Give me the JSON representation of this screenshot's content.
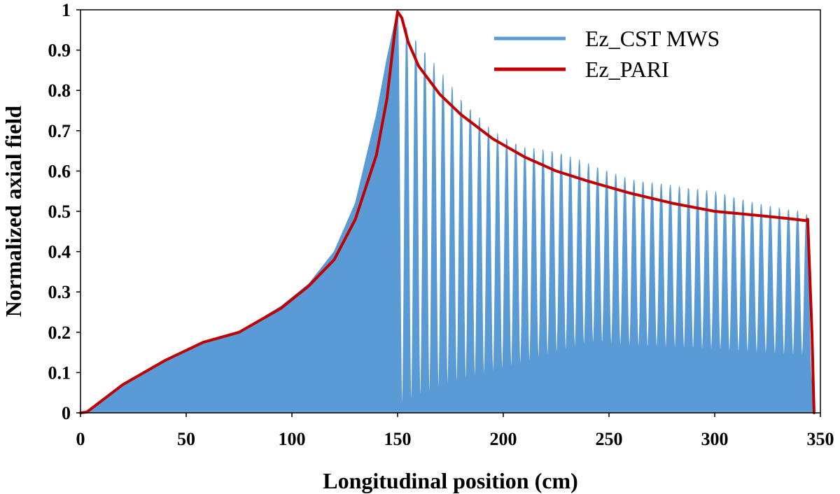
{
  "chart_data": {
    "type": "line",
    "xlabel": "Longitudinal position (cm)",
    "ylabel": "Normalized axial field",
    "xlim": [
      0,
      350
    ],
    "ylim": [
      0,
      1
    ],
    "xticks": [
      "0",
      "50",
      "100",
      "150",
      "200",
      "250",
      "300",
      "350"
    ],
    "yticks": [
      "0",
      "0.1",
      "0.2",
      "0.3",
      "0.4",
      "0.5",
      "0.6",
      "0.7",
      "0.8",
      "0.9",
      "1"
    ],
    "grid": false,
    "legend_position": "top-right",
    "series": [
      {
        "name": "Ez_CST MWS",
        "color": "#5b9bd5",
        "style": "oscillating",
        "envelope": {
          "x": [
            0,
            3,
            20,
            40,
            58,
            75,
            95,
            108,
            120,
            130,
            140,
            145,
            150,
            155,
            160,
            170,
            180,
            195,
            210,
            225,
            240,
            260,
            280,
            300,
            320,
            335,
            343,
            345,
            347
          ],
          "y": [
            0,
            0,
            0.07,
            0.13,
            0.175,
            0.2,
            0.265,
            0.32,
            0.4,
            0.52,
            0.74,
            0.88,
            1.0,
            0.95,
            0.92,
            0.85,
            0.78,
            0.7,
            0.66,
            0.65,
            0.62,
            0.58,
            0.565,
            0.55,
            0.52,
            0.505,
            0.5,
            0.47,
            0
          ]
        }
      },
      {
        "name": "Ez_PARI",
        "color": "#c00000",
        "x": [
          0,
          3,
          20,
          40,
          58,
          75,
          95,
          108,
          120,
          130,
          140,
          145,
          149,
          150,
          152,
          155,
          160,
          170,
          180,
          195,
          210,
          225,
          240,
          260,
          280,
          300,
          320,
          335,
          343,
          344,
          346,
          347
        ],
        "y": [
          0,
          0.002,
          0.07,
          0.13,
          0.175,
          0.2,
          0.26,
          0.315,
          0.38,
          0.48,
          0.64,
          0.78,
          0.96,
          0.995,
          0.98,
          0.92,
          0.86,
          0.79,
          0.74,
          0.68,
          0.635,
          0.6,
          0.575,
          0.545,
          0.52,
          0.5,
          0.49,
          0.482,
          0.477,
          0.48,
          0.2,
          0
        ]
      }
    ]
  }
}
